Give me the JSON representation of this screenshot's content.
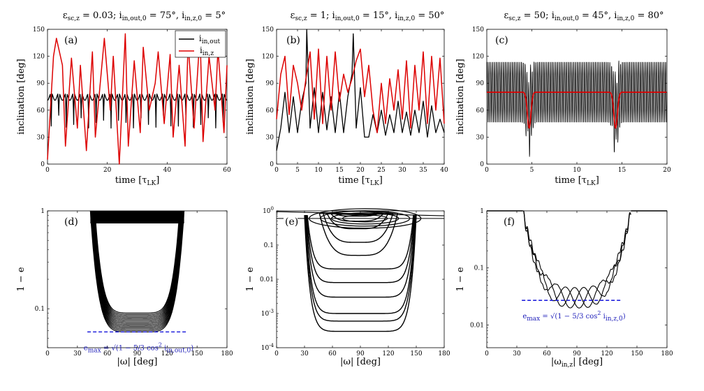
{
  "chart_data": [
    {
      "panel": "(a)",
      "type": "line",
      "title": "ε_sc,z = 0.03; i_in,out,0 = 75°, i_in,z,0 = 5°",
      "xlabel": "time [τ_LK]",
      "ylabel": "inclination [deg]",
      "xlim": [
        0,
        60
      ],
      "ylim": [
        0,
        150
      ],
      "xticks": [
        0,
        20,
        40,
        60
      ],
      "yticks": [
        0,
        30,
        60,
        90,
        120,
        150
      ],
      "legend": {
        "position": "top-right",
        "entries": [
          "i_in,out",
          "i_in,z"
        ]
      },
      "series": [
        {
          "name": "i_in,out",
          "color": "#000000",
          "baseline": 75,
          "min_dip": 40,
          "period": 2.5
        },
        {
          "name": "i_in,z",
          "color": "#dd0000",
          "x": [
            0,
            2,
            3,
            5,
            6,
            8,
            10,
            11,
            13,
            15,
            16,
            19,
            21,
            22,
            24,
            26,
            27,
            29,
            31,
            32,
            34,
            36,
            37,
            39,
            41,
            42,
            44,
            46,
            47,
            49,
            51,
            52,
            54,
            56,
            57,
            59,
            60
          ],
          "values": [
            5,
            120,
            140,
            110,
            20,
            118,
            40,
            110,
            15,
            125,
            30,
            140,
            60,
            120,
            0,
            145,
            20,
            115,
            35,
            130,
            60,
            90,
            125,
            45,
            122,
            30,
            110,
            20,
            135,
            40,
            145,
            25,
            120,
            60,
            128,
            35,
            110
          ]
        }
      ]
    },
    {
      "panel": "(b)",
      "type": "line",
      "title": "ε_sc,z = 1; i_in,out,0 = 15°, i_in,z,0 = 50°",
      "xlabel": "time [τ_LK]",
      "ylabel": "inclination [deg]",
      "xlim": [
        0,
        40
      ],
      "ylim": [
        0,
        150
      ],
      "xticks": [
        0,
        5,
        10,
        15,
        20,
        25,
        30,
        35,
        40
      ],
      "yticks": [
        0,
        30,
        60,
        90,
        120,
        150
      ],
      "series": [
        {
          "name": "i_in,out",
          "color": "#000000",
          "x": [
            0,
            1,
            2,
            3,
            4,
            5,
            6,
            7,
            7.2,
            8,
            9,
            10,
            11,
            12,
            13,
            14,
            15,
            16,
            17,
            18,
            18.3,
            19,
            20,
            21,
            22,
            23,
            24,
            25,
            26,
            27,
            28,
            29,
            30,
            31,
            32,
            33,
            34,
            35,
            36,
            37,
            38,
            39,
            40
          ],
          "values": [
            15,
            40,
            80,
            35,
            75,
            35,
            70,
            90,
            150,
            40,
            85,
            35,
            80,
            38,
            75,
            35,
            80,
            35,
            75,
            100,
            145,
            40,
            85,
            30,
            30,
            55,
            35,
            60,
            32,
            55,
            35,
            70,
            35,
            58,
            32,
            60,
            35,
            70,
            30,
            65,
            35,
            50,
            35
          ]
        },
        {
          "name": "i_in,z",
          "color": "#dd0000",
          "x": [
            0,
            1,
            2,
            3,
            4,
            5,
            6,
            7,
            8,
            9,
            10,
            11,
            12,
            13,
            14,
            15,
            16,
            17,
            18,
            19,
            20,
            21,
            22,
            23,
            24,
            25,
            26,
            27,
            28,
            29,
            30,
            31,
            32,
            33,
            34,
            35,
            36,
            37,
            38,
            39,
            40
          ],
          "values": [
            50,
            100,
            120,
            55,
            110,
            90,
            60,
            95,
            125,
            50,
            128,
            45,
            120,
            60,
            125,
            70,
            100,
            80,
            95,
            115,
            128,
            75,
            110,
            60,
            35,
            90,
            45,
            95,
            60,
            105,
            50,
            115,
            40,
            110,
            60,
            125,
            45,
            120,
            60,
            118,
            45
          ]
        }
      ]
    },
    {
      "panel": "(c)",
      "type": "line",
      "title": "ε_sc,z = 50; i_in,out,0 = 45°, i_in,z,0 = 80°",
      "xlabel": "time [τ_LK]",
      "ylabel": "inclination [deg]",
      "xlim": [
        0,
        20
      ],
      "ylim": [
        0,
        150
      ],
      "xticks": [
        0,
        5,
        10,
        15,
        20
      ],
      "yticks": [
        0,
        30,
        60,
        90,
        120,
        150
      ],
      "series": [
        {
          "name": "i_in,out",
          "color": "#000000",
          "oscillation_range": [
            45,
            115
          ],
          "oscillation_period": 0.2,
          "dips_at": [
            4.7,
            14.3
          ]
        },
        {
          "name": "i_in,z",
          "color": "#dd0000",
          "baseline": 80,
          "dips_at": [
            4.7,
            14.3
          ],
          "dip_min": 40
        }
      ]
    },
    {
      "panel": "(d)",
      "type": "line",
      "xlabel": "|ω| [deg]",
      "ylabel": "1 − e",
      "xlim": [
        0,
        180
      ],
      "ylim": [
        0.04,
        1
      ],
      "yscale": "log",
      "xticks": [
        0,
        30,
        60,
        90,
        120,
        150,
        180
      ],
      "yticks": [
        0.1,
        1
      ],
      "annotation": "e_max = √(1 − 5/3 cos² i_in,out,0)",
      "e_max_line": {
        "value": 0.058,
        "x_range": [
          40,
          140
        ],
        "color": "#2222dd"
      },
      "series": [
        {
          "name": "trajectory",
          "color": "#000000",
          "x_range": [
            43,
            137
          ],
          "min_value": 0.058
        }
      ]
    },
    {
      "panel": "(e)",
      "type": "line",
      "xlabel": "|ω| [deg]",
      "ylabel": "1 − e",
      "xlim": [
        0,
        180
      ],
      "ylim": [
        0.0001,
        1
      ],
      "yscale": "log",
      "xticks": [
        0,
        30,
        60,
        90,
        120,
        150,
        180
      ],
      "yticks": [
        0.0001,
        0.001,
        0.01,
        0.1,
        1
      ],
      "series": [
        {
          "name": "trajectories",
          "color": "#000000",
          "loop_minima": [
            0.0003,
            0.0006,
            0.001,
            0.003,
            0.008,
            0.02,
            0.05,
            0.12,
            0.3,
            0.5,
            0.7
          ]
        }
      ]
    },
    {
      "panel": "(f)",
      "type": "line",
      "xlabel": "|ω_in,z| [deg]",
      "ylabel": "1 − e",
      "xlim": [
        0,
        180
      ],
      "ylim": [
        0.004,
        1
      ],
      "yscale": "log",
      "xticks": [
        0,
        30,
        60,
        90,
        120,
        150,
        180
      ],
      "yticks": [
        0.01,
        0.1,
        1
      ],
      "annotation": "e_max = √(1 − 5/3 cos² i_in,z,0)",
      "e_max_line": {
        "value": 0.027,
        "x_range": [
          35,
          135
        ],
        "color": "#2222dd"
      },
      "series": [
        {
          "name": "trajectory",
          "color": "#000000",
          "x_range": [
            36,
            144
          ],
          "min_value": 0.023
        }
      ]
    }
  ]
}
